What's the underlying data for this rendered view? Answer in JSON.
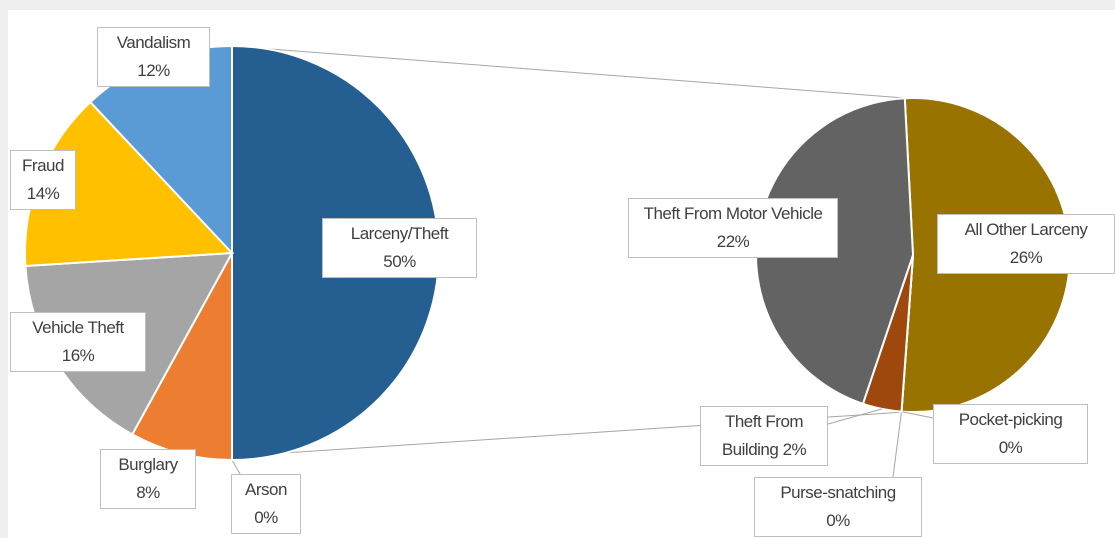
{
  "chart_data": [
    {
      "type": "pie",
      "categories": [
        "Larceny/Theft",
        "Arson",
        "Burglary",
        "Vehicle Theft",
        "Fraud",
        "Vandalism"
      ],
      "values": [
        50,
        0,
        8,
        16,
        14,
        12
      ],
      "value_labels": [
        "50%",
        "0%",
        "8%",
        "16%",
        "14%",
        "12%"
      ],
      "colors": [
        "#255e91",
        "#264478",
        "#ed7d31",
        "#a5a5a5",
        "#ffc000",
        "#5b9bd5"
      ]
    },
    {
      "type": "pie",
      "categories": [
        "All Other Larceny",
        "Pocket-picking",
        "Purse-snatching",
        "Theft From Building",
        "Theft From Motor Vehicle"
      ],
      "values": [
        26,
        0,
        0,
        2,
        22
      ],
      "value_labels": [
        "26%",
        "0%",
        "0%",
        "2%",
        "22%"
      ],
      "colors": [
        "#997300",
        "#7f6000",
        "#c55a11",
        "#9e480e",
        "#636363"
      ]
    }
  ]
}
